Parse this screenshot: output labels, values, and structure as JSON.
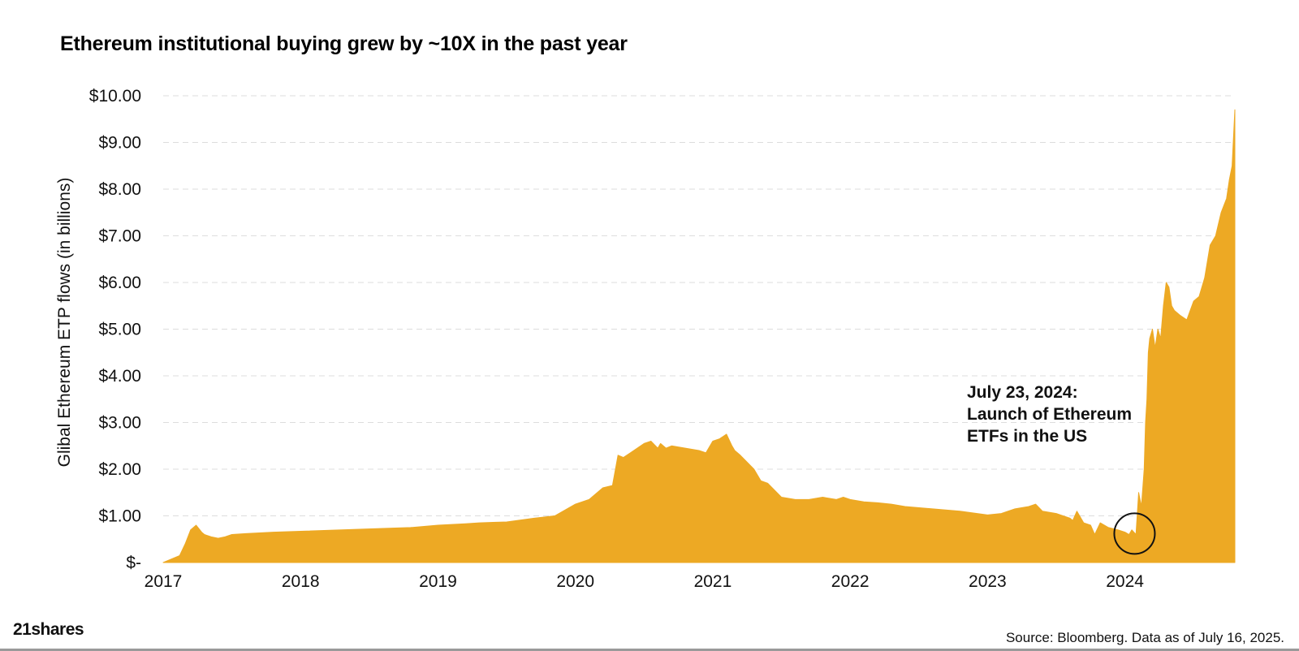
{
  "chart_data": {
    "type": "area",
    "title": "Ethereum institutional buying grew by ~10X in the past year",
    "xlabel": "",
    "ylabel": "Glibal Ethereum ETP flows (in billions)",
    "xlim": [
      2017.0,
      2024.8
    ],
    "ylim": [
      0,
      10
    ],
    "grid": true,
    "color": "#EDA924",
    "y_ticks": [
      {
        "value": 0,
        "label": "$-"
      },
      {
        "value": 1,
        "label": "$1.00"
      },
      {
        "value": 2,
        "label": "$2.00"
      },
      {
        "value": 3,
        "label": "$3.00"
      },
      {
        "value": 4,
        "label": "$4.00"
      },
      {
        "value": 5,
        "label": "$5.00"
      },
      {
        "value": 6,
        "label": "$6.00"
      },
      {
        "value": 7,
        "label": "$7.00"
      },
      {
        "value": 8,
        "label": "$8.00"
      },
      {
        "value": 9,
        "label": "$9.00"
      },
      {
        "value": 10,
        "label": "$10.00"
      }
    ],
    "x_ticks": [
      {
        "value": 2017,
        "label": "2017"
      },
      {
        "value": 2018,
        "label": "2018"
      },
      {
        "value": 2019,
        "label": "2019"
      },
      {
        "value": 2020,
        "label": "2020"
      },
      {
        "value": 2021,
        "label": "2021"
      },
      {
        "value": 2022,
        "label": "2022"
      },
      {
        "value": 2023,
        "label": "2023"
      },
      {
        "value": 2024,
        "label": "2024"
      }
    ],
    "series": [
      {
        "name": "Global Ethereum ETP flows",
        "x": [
          2017.0,
          2017.12,
          2017.16,
          2017.2,
          2017.24,
          2017.28,
          2017.3,
          2017.35,
          2017.4,
          2017.45,
          2017.5,
          2017.6,
          2017.8,
          2018.0,
          2018.3,
          2018.6,
          2018.8,
          2019.0,
          2019.2,
          2019.3,
          2019.4,
          2019.5,
          2019.7,
          2019.85,
          2020.0,
          2020.1,
          2020.2,
          2020.27,
          2020.31,
          2020.35,
          2020.4,
          2020.5,
          2020.55,
          2020.6,
          2020.62,
          2020.66,
          2020.7,
          2020.8,
          2020.9,
          2020.95,
          2021.0,
          2021.05,
          2021.1,
          2021.14,
          2021.16,
          2021.2,
          2021.3,
          2021.35,
          2021.4,
          2021.5,
          2021.6,
          2021.7,
          2021.8,
          2021.9,
          2021.95,
          2022.0,
          2022.1,
          2022.2,
          2022.3,
          2022.4,
          2022.6,
          2022.8,
          2023.0,
          2023.1,
          2023.2,
          2023.3,
          2023.35,
          2023.4,
          2023.5,
          2023.6,
          2023.62,
          2023.65,
          2023.7,
          2023.75,
          2023.78,
          2023.82,
          2023.88,
          2023.95,
          2024.0,
          2024.03,
          2024.05,
          2024.08,
          2024.1,
          2024.12,
          2024.14,
          2024.15,
          2024.16,
          2024.17,
          2024.18,
          2024.2,
          2024.22,
          2024.24,
          2024.26,
          2024.28,
          2024.3,
          2024.32,
          2024.34,
          2024.36,
          2024.4,
          2024.45,
          2024.5,
          2024.54,
          2024.58,
          2024.62,
          2024.66,
          2024.7,
          2024.74,
          2024.76,
          2024.78,
          2024.8
        ],
        "values": [
          0.0,
          0.15,
          0.4,
          0.7,
          0.8,
          0.65,
          0.6,
          0.55,
          0.52,
          0.55,
          0.6,
          0.62,
          0.65,
          0.67,
          0.7,
          0.73,
          0.75,
          0.8,
          0.83,
          0.85,
          0.86,
          0.87,
          0.95,
          1.0,
          1.25,
          1.35,
          1.6,
          1.65,
          2.3,
          2.25,
          2.35,
          2.55,
          2.6,
          2.45,
          2.55,
          2.45,
          2.5,
          2.45,
          2.4,
          2.35,
          2.6,
          2.65,
          2.75,
          2.5,
          2.4,
          2.3,
          2.0,
          1.75,
          1.7,
          1.4,
          1.35,
          1.35,
          1.4,
          1.35,
          1.4,
          1.35,
          1.3,
          1.28,
          1.25,
          1.2,
          1.15,
          1.1,
          1.02,
          1.05,
          1.15,
          1.2,
          1.25,
          1.1,
          1.05,
          0.95,
          0.9,
          1.1,
          0.85,
          0.8,
          0.6,
          0.85,
          0.75,
          0.7,
          0.65,
          0.6,
          0.7,
          0.6,
          1.5,
          1.2,
          2.0,
          3.0,
          3.5,
          4.5,
          4.8,
          5.0,
          4.6,
          5.0,
          4.8,
          5.5,
          6.0,
          5.9,
          5.5,
          5.4,
          5.3,
          5.2,
          5.6,
          5.7,
          6.1,
          6.8,
          7.0,
          7.5,
          7.8,
          8.2,
          8.5,
          9.7
        ]
      }
    ],
    "annotation": {
      "lines": [
        "July 23, 2024:",
        "Launch of Ethereum",
        "ETFs in the US"
      ],
      "target": {
        "x": 2024.07,
        "y": 0.62
      }
    }
  },
  "branding": {
    "logo": "21shares"
  },
  "footer": {
    "source": "Source: Bloomberg. Data as of July 16, 2025."
  }
}
